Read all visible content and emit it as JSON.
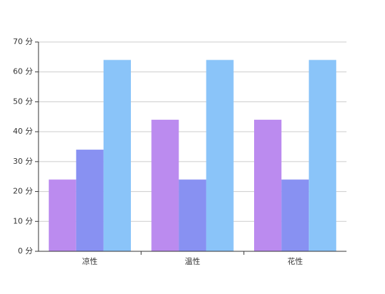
{
  "chart_data": {
    "type": "bar",
    "categories": [
      "凉性",
      "温性",
      "花性"
    ],
    "series": [
      {
        "color": "#bb8bef",
        "values": [
          24,
          44,
          44
        ]
      },
      {
        "color": "#8891f2",
        "values": [
          34,
          24,
          24
        ]
      },
      {
        "color": "#8ac4f9",
        "values": [
          64,
          64,
          64
        ]
      }
    ],
    "ylim": [
      0,
      70
    ],
    "yticks": [
      {
        "value": 0,
        "label": "0 分"
      },
      {
        "value": 10,
        "label": "10 分"
      },
      {
        "value": 20,
        "label": "20 分"
      },
      {
        "value": 30,
        "label": "30 分"
      },
      {
        "value": 40,
        "label": "40 分"
      },
      {
        "value": 50,
        "label": "50 分"
      },
      {
        "value": 60,
        "label": "60 分"
      },
      {
        "value": 70,
        "label": "70 分"
      }
    ],
    "grid": true
  }
}
